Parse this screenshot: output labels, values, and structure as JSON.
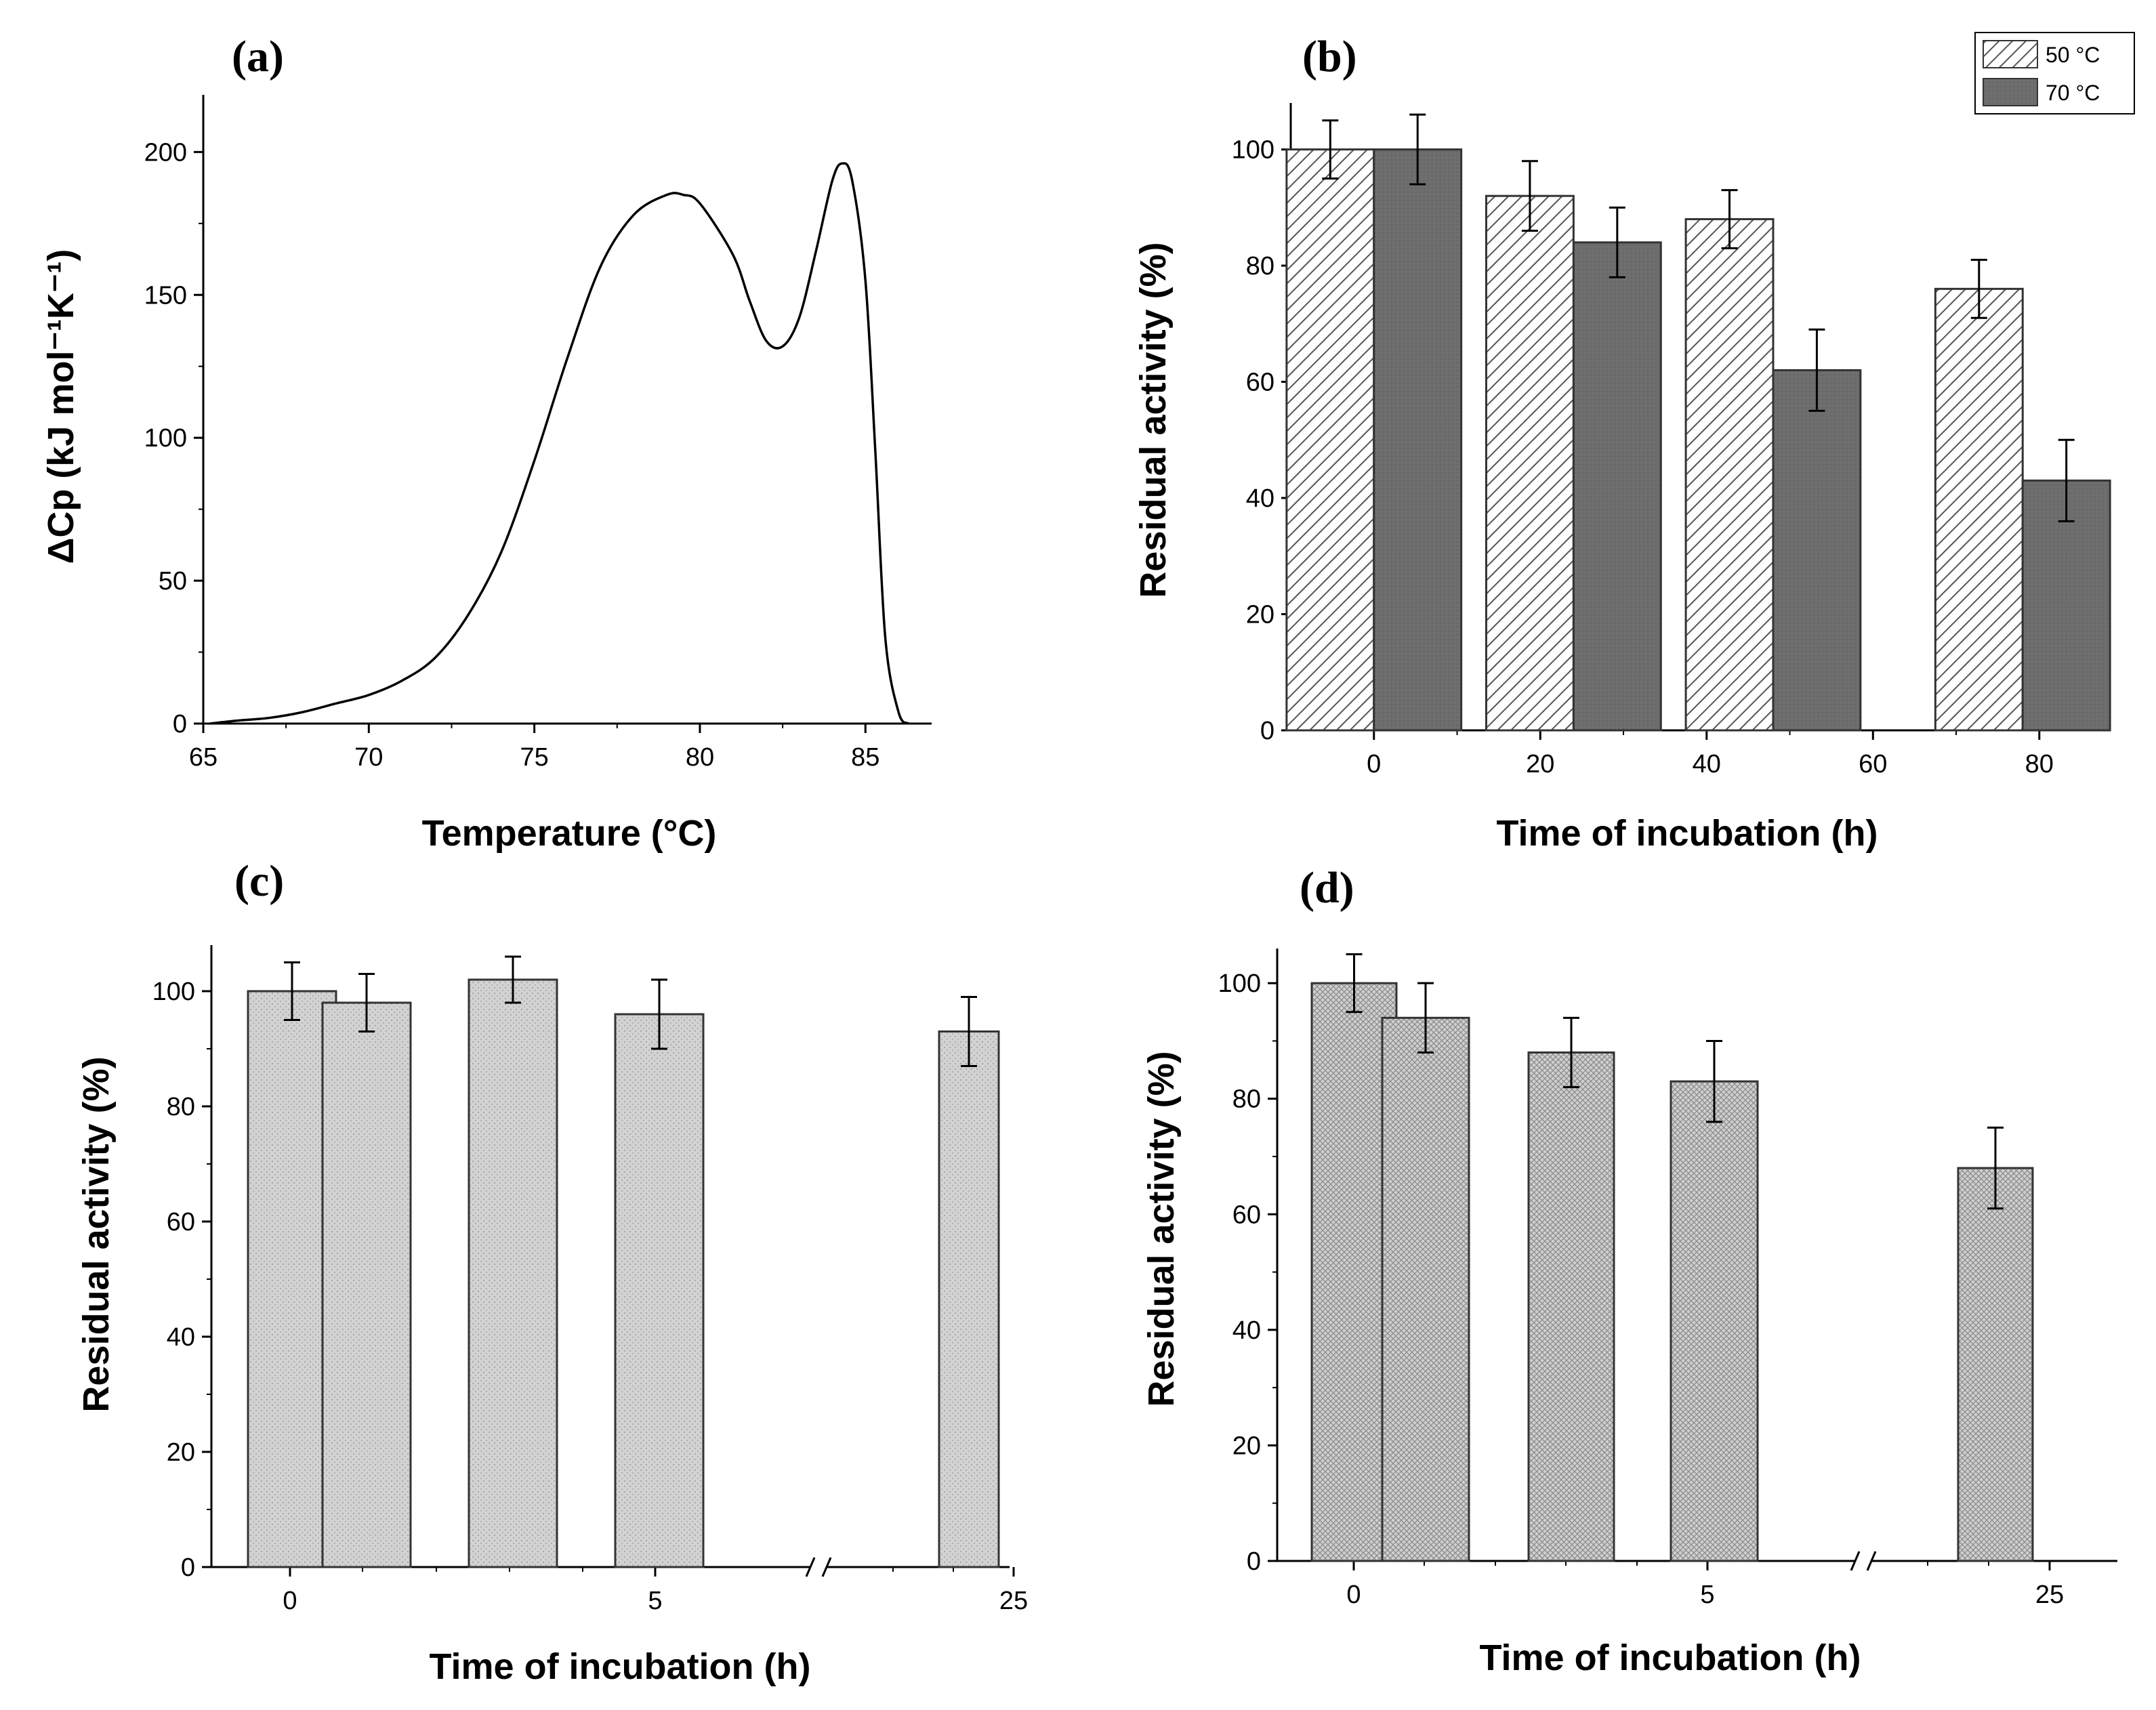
{
  "figure": {
    "panels": [
      "(a)",
      "(b)",
      "(c)",
      "(d)"
    ]
  },
  "colors": {
    "axis": "#000000",
    "bar_dark": "#6e6e6e",
    "bar_hatch_line": "#555555",
    "bar_light_dotted": "#cfcfcf",
    "bar_crosshatch": "#bdbdbd"
  },
  "chart_data": [
    {
      "panel": "(a)",
      "type": "line",
      "xlabel": "Temperature (°C)",
      "ylabel": "ΔCp (kJ mol⁻¹K⁻¹)",
      "xlim": [
        65,
        87
      ],
      "ylim": [
        0,
        220
      ],
      "xticks": [
        65,
        70,
        75,
        80,
        85
      ],
      "yticks": [
        0,
        50,
        100,
        150,
        200
      ],
      "series": [
        {
          "x": [
            65.2,
            66,
            67,
            68,
            69,
            70,
            71,
            72,
            73,
            74,
            75,
            76,
            77,
            78,
            79,
            79.5,
            80,
            81,
            81.5,
            82,
            82.5,
            83,
            83.5,
            84,
            84.3,
            84.6,
            85,
            85.3,
            85.6,
            86,
            86.3
          ],
          "y": [
            0,
            1,
            2,
            4,
            7,
            10,
            15,
            23,
            38,
            60,
            92,
            128,
            160,
            178,
            185,
            185,
            182,
            164,
            148,
            134,
            132,
            142,
            165,
            190,
            196,
            190,
            155,
            95,
            30,
            4,
            0
          ]
        }
      ]
    },
    {
      "panel": "(b)",
      "type": "bar",
      "xlabel": "Time of incubation (h)",
      "ylabel": "Residual activity (%)",
      "xlim": [
        -10,
        88
      ],
      "ylim": [
        0,
        108
      ],
      "xticks": [
        0,
        20,
        40,
        60,
        80
      ],
      "yticks": [
        0,
        20,
        40,
        60,
        80,
        100
      ],
      "legend": "top-right",
      "x": [
        0,
        24,
        48,
        78
      ],
      "series": [
        {
          "name": "50 °C",
          "values": [
            100,
            92,
            88,
            76
          ],
          "errors": [
            5,
            6,
            5,
            5
          ],
          "pattern": "hatch"
        },
        {
          "name": "70 °C",
          "values": [
            100,
            84,
            62,
            43
          ],
          "errors": [
            6,
            6,
            7,
            7
          ],
          "pattern": "dark"
        }
      ]
    },
    {
      "panel": "(c)",
      "type": "bar",
      "xlabel": "Time of incubation (h)",
      "ylabel": "Residual activity (%)",
      "ylim": [
        0,
        108
      ],
      "yticks": [
        0,
        20,
        40,
        60,
        80,
        100
      ],
      "xtick_labels": [
        "0",
        "5",
        "25"
      ],
      "axis_break": true,
      "categories": [
        "0",
        "1",
        "3",
        "5",
        "24"
      ],
      "values": [
        100,
        98,
        102,
        96,
        93
      ],
      "errors": [
        5,
        5,
        4,
        6,
        6
      ]
    },
    {
      "panel": "(d)",
      "type": "bar",
      "xlabel": "Time of incubation (h)",
      "ylabel": "Residual activity (%)",
      "ylim": [
        0,
        106
      ],
      "yticks": [
        0,
        20,
        40,
        60,
        80,
        100
      ],
      "xtick_labels": [
        "0",
        "5",
        "25"
      ],
      "axis_break": true,
      "categories": [
        "0",
        "1",
        "3",
        "5",
        "24"
      ],
      "values": [
        100,
        94,
        88,
        83,
        68
      ],
      "errors": [
        5,
        6,
        6,
        7,
        7
      ]
    }
  ]
}
